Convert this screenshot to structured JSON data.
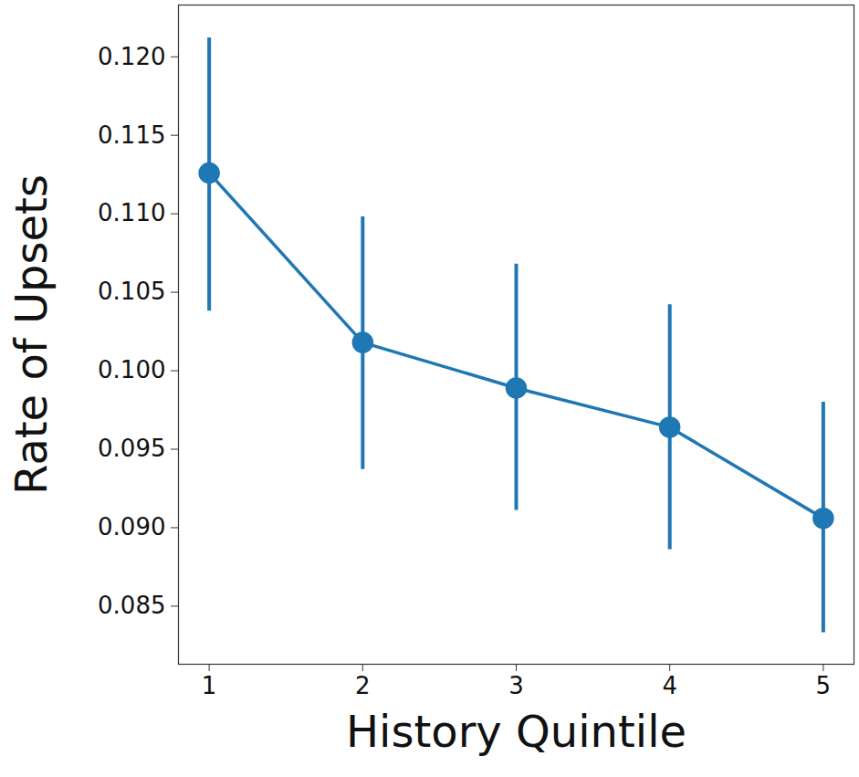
{
  "chart_data": {
    "type": "line",
    "x_label": "History Quintile",
    "y_label": "Rate of Upsets",
    "x": [
      1,
      2,
      3,
      4,
      5
    ],
    "values": [
      0.1126,
      0.1018,
      0.0989,
      0.0964,
      0.0906
    ],
    "error_bars": {
      "low": [
        0.1038,
        0.0937,
        0.0911,
        0.0886,
        0.0833
      ],
      "high": [
        0.1212,
        0.1098,
        0.1068,
        0.1042,
        0.098
      ]
    },
    "color": "#1f77b4",
    "marker": "circle",
    "line_style": "solid",
    "grid": false,
    "xlim": [
      0.8,
      5.2
    ],
    "xticks": [
      1,
      2,
      3,
      4,
      5
    ],
    "ylim": [
      0.0813,
      0.1233
    ],
    "yticks": [
      0.085,
      {
        "value": 0.09,
        "label": "0.090"
      },
      0.095,
      {
        "value": 0.1,
        "label": "0.100"
      },
      0.105,
      {
        "value": 0.11,
        "label": "0.110"
      },
      0.115,
      {
        "value": 0.12,
        "label": "0.120"
      }
    ]
  }
}
